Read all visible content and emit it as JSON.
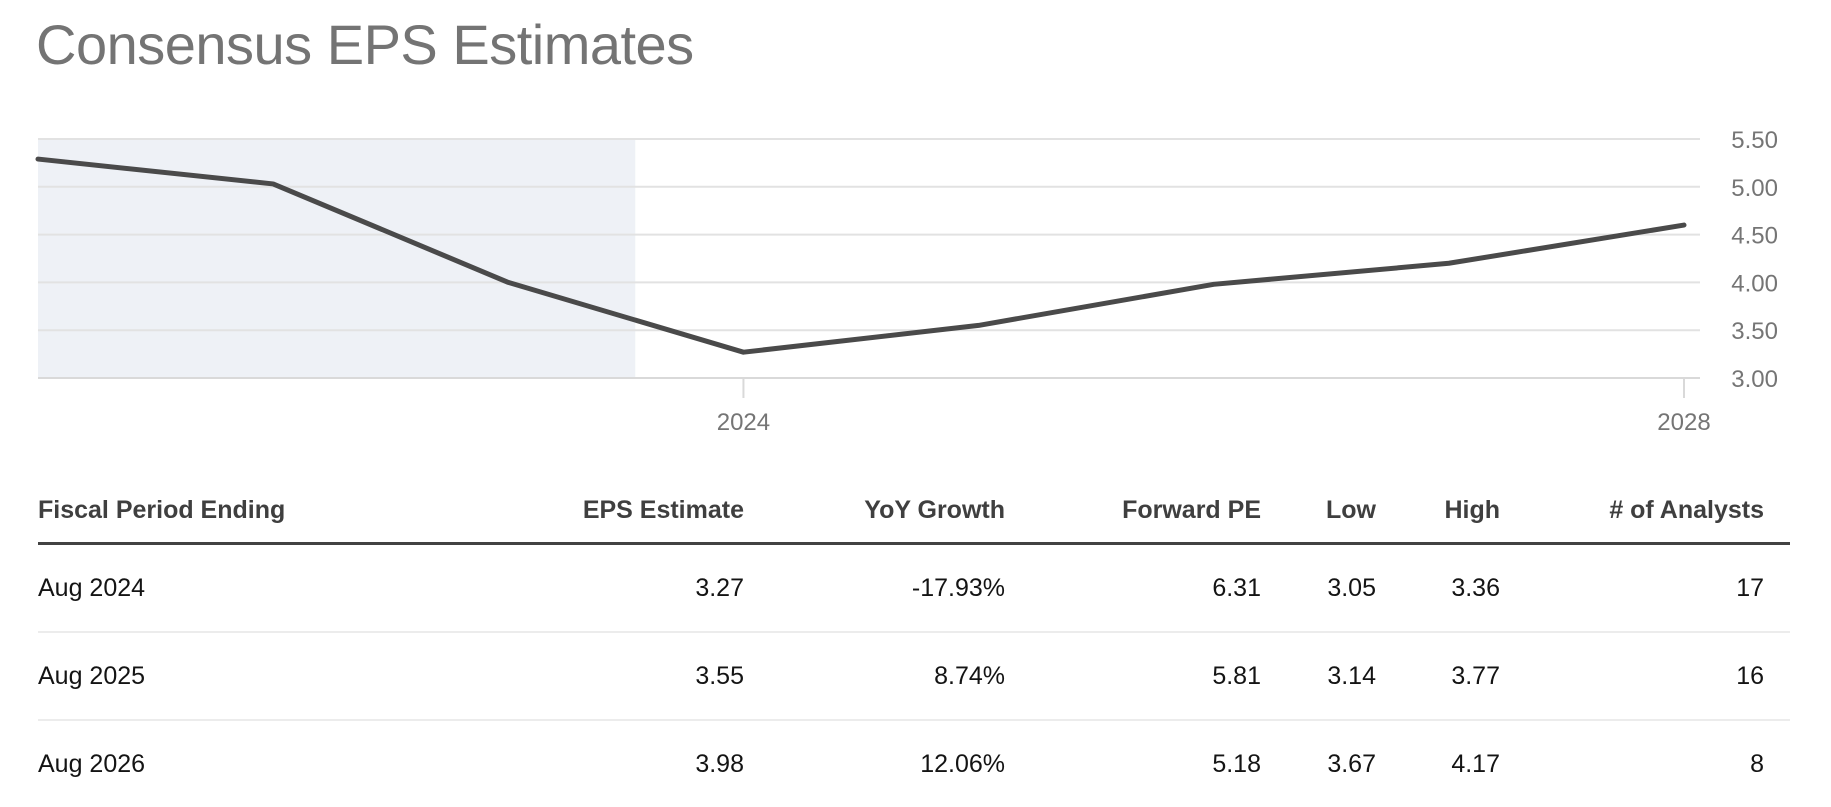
{
  "title": "Consensus EPS Estimates",
  "chart_data": {
    "type": "line",
    "title": "Consensus EPS Estimates",
    "x": [
      2021,
      2022,
      2023,
      2024,
      2025,
      2026,
      2027,
      2028
    ],
    "values": [
      5.29,
      5.03,
      4.0,
      3.27,
      3.55,
      3.98,
      4.2,
      4.6
    ],
    "series_name": "Consensus EPS Estimate",
    "ylim": [
      3.0,
      5.5
    ],
    "y_ticks": [
      "5.50",
      "5.00",
      "4.50",
      "4.00",
      "3.50",
      "3.00"
    ],
    "y_tick_values": [
      5.5,
      5.0,
      4.5,
      4.0,
      3.5,
      3.0
    ],
    "x_tick_labels": [
      "2024",
      "2028"
    ],
    "x_tick_years": [
      2024,
      2028
    ],
    "shaded_end_year": 2023.54,
    "grid": true,
    "legend": "none",
    "line_color": "#4a4a4a",
    "shade_color": "#eef1f6",
    "grid_color": "#e2e2e2",
    "axis_line_color": "#d9d9d9",
    "axis_label_color": "#757575"
  },
  "table": {
    "columns": [
      {
        "label": "Fiscal Period Ending"
      },
      {
        "label": "EPS Estimate"
      },
      {
        "label": "YoY Growth"
      },
      {
        "label": "Forward PE"
      },
      {
        "label": "Low"
      },
      {
        "label": "High"
      },
      {
        "label": "# of Analysts"
      }
    ],
    "rows": [
      {
        "period": "Aug 2024",
        "eps": "3.27",
        "yoy": "-17.93%",
        "fpe": "6.31",
        "low": "3.05",
        "high": "3.36",
        "analysts": "17"
      },
      {
        "period": "Aug 2025",
        "eps": "3.55",
        "yoy": "8.74%",
        "fpe": "5.81",
        "low": "3.14",
        "high": "3.77",
        "analysts": "16"
      },
      {
        "period": "Aug 2026",
        "eps": "3.98",
        "yoy": "12.06%",
        "fpe": "5.18",
        "low": "3.67",
        "high": "4.17",
        "analysts": "8"
      }
    ]
  }
}
